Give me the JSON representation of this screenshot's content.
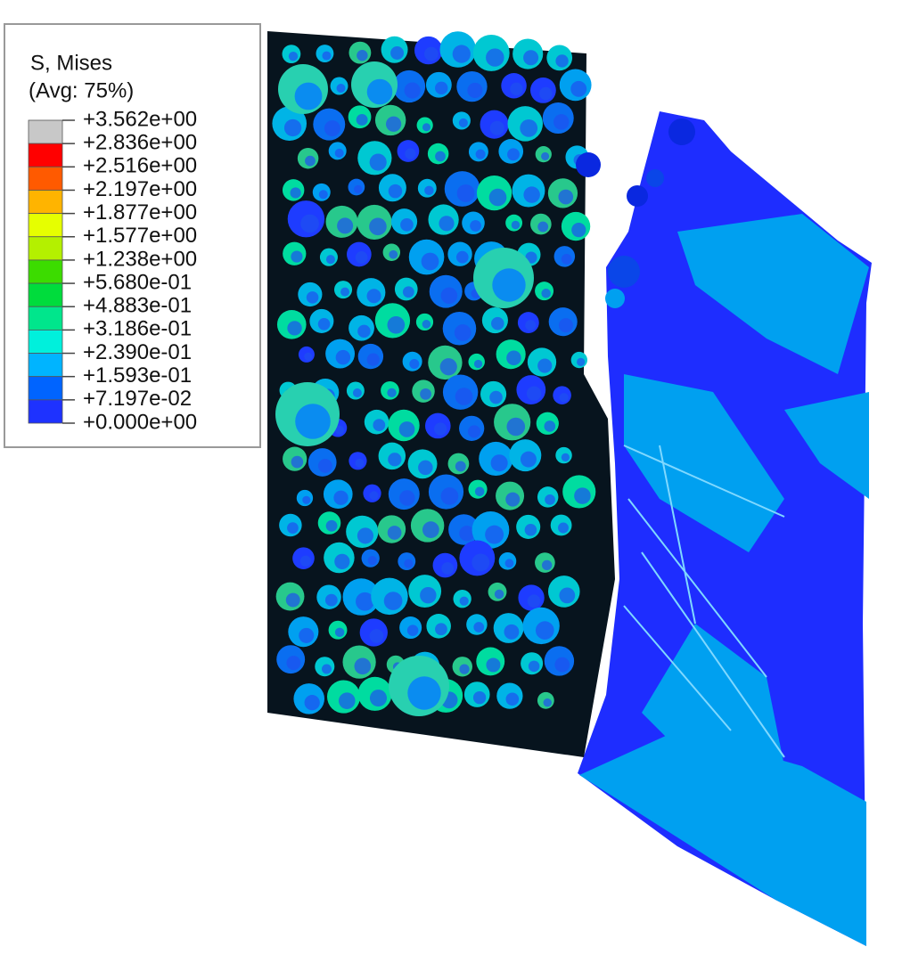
{
  "legend": {
    "title": "S, Mises",
    "subtitle": "(Avg: 75%)",
    "labels": [
      "+3.562e+00",
      "+2.836e+00",
      "+2.516e+00",
      "+2.197e+00",
      "+1.877e+00",
      "+1.577e+00",
      "+1.238e+00",
      "+5.680e-01",
      "+4.883e-01",
      "+3.186e-01",
      "+2.390e-01",
      "+1.593e-01",
      "+7.197e-02",
      "+0.000e+00"
    ],
    "colors": [
      "#c8c8c8",
      "#ff0000",
      "#ff5a00",
      "#ffb400",
      "#e6ff00",
      "#b4f000",
      "#3cdc00",
      "#00dc3c",
      "#00e68c",
      "#00f0dc",
      "#00b4ff",
      "#0064ff",
      "#1e32ff"
    ]
  }
}
